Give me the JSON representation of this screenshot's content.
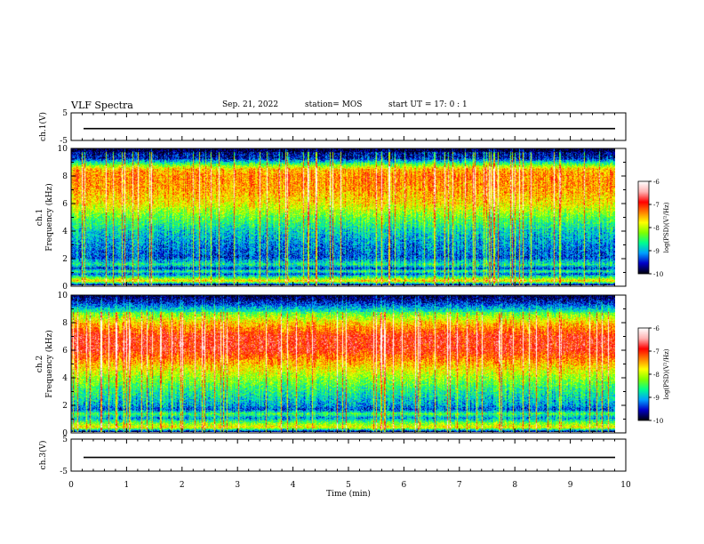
{
  "header": {
    "title": "VLF Spectra",
    "date": "Sep. 21, 2022",
    "station": "station= MOS",
    "start_ut": "start  UT =   17: 0  : 1"
  },
  "colors": {
    "spectrogram_scale": [
      "#000010",
      "#0000c8",
      "#00a0ff",
      "#00ff90",
      "#80ff00",
      "#ffff00",
      "#ff8000",
      "#ff0000",
      "#ffb0b0",
      "#ffffff"
    ]
  },
  "chart_data": [
    {
      "type": "line",
      "panel": "ch1-voltage",
      "ylabel": "ch.1(V)",
      "ylim": [
        -5,
        5
      ],
      "yticks": [
        "5",
        "-5"
      ],
      "series": [
        {
          "values_constant": -0.7
        }
      ]
    },
    {
      "type": "heatmap",
      "panel": "ch1-spectrogram",
      "ylabel": [
        "ch.1",
        "Frequency  (kHz)"
      ],
      "ylim": [
        0,
        10
      ],
      "yticks": [
        "0",
        "2",
        "4",
        "6",
        "8",
        "10"
      ],
      "colorbar": {
        "label": "log(PSD)(V²/Hz)",
        "ticks": [
          "-6",
          "-7",
          "-8",
          "-9",
          "-10"
        ],
        "range": [
          -10,
          -6
        ]
      },
      "intense_band_khz": [
        5,
        9
      ],
      "profile_freq_khz": [
        0,
        0.3,
        0.5,
        0.8,
        1.0,
        1.2,
        1.5,
        2,
        3,
        4,
        5,
        6,
        7,
        8,
        8.5,
        9,
        9.3,
        10
      ],
      "profile_log_psd": [
        -10,
        -7.8,
        -8.6,
        -9.6,
        -8.8,
        -9.7,
        -8.9,
        -9.6,
        -9.4,
        -9.1,
        -8.6,
        -8.0,
        -7.7,
        -7.6,
        -7.8,
        -9.0,
        -9.8,
        -10
      ]
    },
    {
      "type": "heatmap",
      "panel": "ch2-spectrogram",
      "ylabel": [
        "ch.2",
        "Frequency  (kHz)"
      ],
      "ylim": [
        0,
        10
      ],
      "yticks": [
        "0",
        "2",
        "4",
        "6",
        "8",
        "10"
      ],
      "colorbar": {
        "label": "log(PSD)(V²/Hz)",
        "ticks": [
          "-6",
          "-7",
          "-8",
          "-9",
          "-10"
        ],
        "range": [
          -10,
          -6
        ]
      },
      "intense_band_khz": [
        5,
        8
      ],
      "profile_freq_khz": [
        0,
        0.3,
        0.6,
        1.0,
        1.3,
        1.6,
        2,
        3,
        4,
        5,
        6,
        7,
        8,
        8.5,
        9,
        9.5,
        10
      ],
      "profile_log_psd": [
        -10,
        -8.0,
        -8.5,
        -9.4,
        -8.7,
        -9.6,
        -9.3,
        -8.9,
        -8.4,
        -7.8,
        -7.2,
        -7.2,
        -7.9,
        -8.4,
        -9.0,
        -9.6,
        -10
      ]
    },
    {
      "type": "line",
      "panel": "ch3-voltage",
      "ylabel": "ch.3(V)",
      "ylim": [
        -5,
        5
      ],
      "yticks": [
        "5",
        "-5"
      ],
      "series": [
        {
          "values_constant": -0.7
        }
      ]
    }
  ],
  "x_axis": {
    "label": "Time  (min)",
    "xlim": [
      0,
      10
    ],
    "ticks": [
      "0",
      "1",
      "2",
      "3",
      "4",
      "5",
      "6",
      "7",
      "8",
      "9",
      "10"
    ]
  }
}
